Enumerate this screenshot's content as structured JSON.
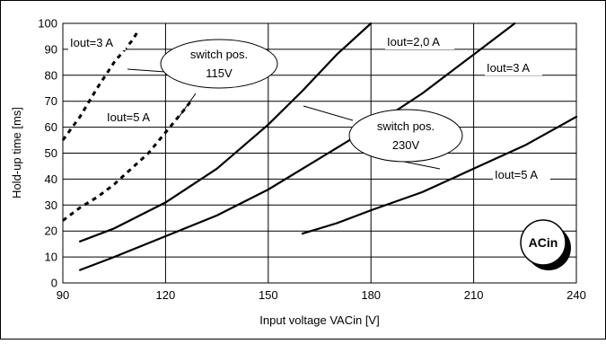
{
  "chart_data": {
    "type": "line",
    "xlabel": "Input voltage VACin [V]",
    "ylabel": "Hold-up time  [ms]",
    "xlim": [
      90,
      240
    ],
    "ylim": [
      0,
      100
    ],
    "x_ticks": [
      90,
      120,
      150,
      180,
      210,
      240
    ],
    "y_ticks": [
      0,
      10,
      20,
      30,
      40,
      50,
      60,
      70,
      80,
      90,
      100
    ],
    "x_tick_labels": [
      "90",
      "120",
      "150",
      "180",
      "210",
      "240"
    ],
    "y_tick_labels": [
      "0",
      "10",
      "20",
      "30",
      "40",
      "50",
      "60",
      "70",
      "80",
      "90",
      "100"
    ],
    "grid": true,
    "badge": "ACin",
    "series": [
      {
        "name": "Iout=3 A",
        "group": "switch pos. 115V",
        "style": "dotted",
        "points": [
          [
            90,
            55
          ],
          [
            95,
            64
          ],
          [
            100,
            75
          ],
          [
            105,
            85
          ],
          [
            110,
            93
          ],
          [
            112,
            97
          ]
        ]
      },
      {
        "name": "Iout=5 A",
        "group": "switch pos. 115V",
        "style": "dotted",
        "points": [
          [
            90,
            24
          ],
          [
            95,
            29
          ],
          [
            100,
            33
          ],
          [
            105,
            38
          ],
          [
            110,
            44
          ],
          [
            115,
            50
          ],
          [
            120,
            58
          ],
          [
            125,
            66
          ],
          [
            128,
            71
          ]
        ]
      },
      {
        "name": "Iout=2,0 A",
        "group": "switch pos. 230V",
        "style": "solid",
        "points": [
          [
            95,
            16
          ],
          [
            105,
            21
          ],
          [
            120,
            31
          ],
          [
            135,
            44
          ],
          [
            150,
            61
          ],
          [
            160,
            74
          ],
          [
            170,
            88
          ],
          [
            180,
            100
          ]
        ]
      },
      {
        "name": "Iout=3 A",
        "group": "switch pos. 230V",
        "style": "solid",
        "points": [
          [
            95,
            5
          ],
          [
            105,
            10
          ],
          [
            120,
            18
          ],
          [
            135,
            26
          ],
          [
            150,
            36
          ],
          [
            165,
            48
          ],
          [
            180,
            60
          ],
          [
            195,
            73
          ],
          [
            210,
            88
          ],
          [
            222,
            100
          ]
        ]
      },
      {
        "name": "Iout=5 A",
        "group": "switch pos. 230V",
        "style": "solid",
        "points": [
          [
            160,
            19
          ],
          [
            170,
            23
          ],
          [
            180,
            28
          ],
          [
            195,
            35
          ],
          [
            210,
            44
          ],
          [
            225,
            53
          ],
          [
            240,
            64
          ]
        ]
      }
    ],
    "annotations": [
      {
        "id": "i3-115",
        "text": "Iout=3 A"
      },
      {
        "id": "i5-115",
        "text": "Iout=5 A"
      },
      {
        "id": "i2-230",
        "text": "Iout=2,0 A"
      },
      {
        "id": "i3-230",
        "text": "Iout=3 A"
      },
      {
        "id": "i5-230",
        "text": "Iout=5 A"
      }
    ],
    "callouts": [
      {
        "id": "sw115",
        "line1": "switch pos.",
        "line2": "115V"
      },
      {
        "id": "sw230",
        "line1": "switch pos.",
        "line2": "230V"
      }
    ]
  }
}
